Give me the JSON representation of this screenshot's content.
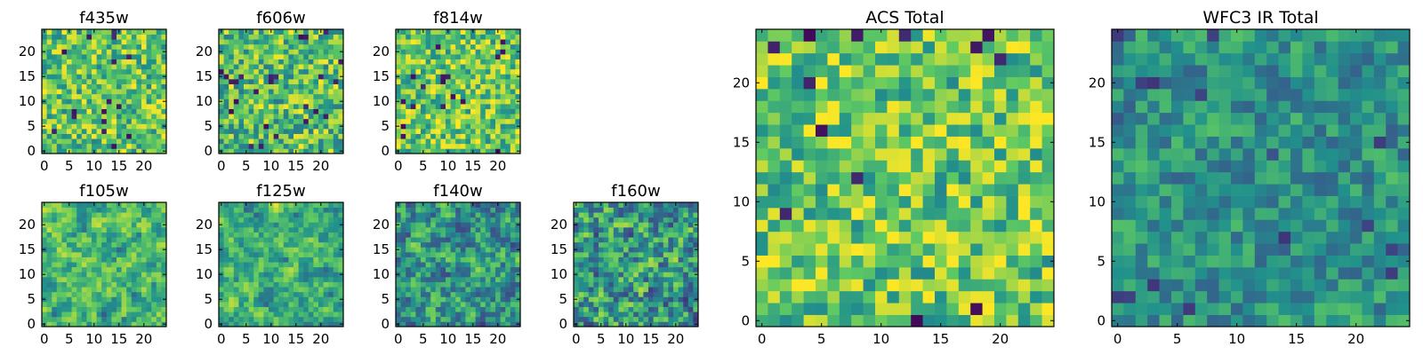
{
  "figure": {
    "background": "#ffffff"
  },
  "colormap": {
    "name": "viridis",
    "stops": [
      "#440154",
      "#3b528b",
      "#21918c",
      "#5ec962",
      "#fde725"
    ]
  },
  "chart_data": [
    {
      "type": "heatmap",
      "title": "f435w",
      "grid": 25,
      "xticks": [
        0,
        5,
        10,
        15,
        20
      ],
      "yticks": [
        0,
        5,
        10,
        15,
        20
      ],
      "seed": 11,
      "bias": 0.72,
      "spread": 0.28,
      "smooth": 0.0,
      "dark_frac": 0.03
    },
    {
      "type": "heatmap",
      "title": "f606w",
      "grid": 25,
      "xticks": [
        0,
        5,
        10,
        15,
        20
      ],
      "yticks": [
        0,
        5,
        10,
        15,
        20
      ],
      "seed": 23,
      "bias": 0.7,
      "spread": 0.3,
      "smooth": 0.0,
      "dark_frac": 0.03
    },
    {
      "type": "heatmap",
      "title": "f814w",
      "grid": 25,
      "xticks": [
        0,
        5,
        10,
        15,
        20
      ],
      "yticks": [
        0,
        5,
        10,
        15,
        20
      ],
      "seed": 37,
      "bias": 0.74,
      "spread": 0.28,
      "smooth": 0.0,
      "dark_frac": 0.03
    },
    {
      "type": "heatmap",
      "title": "f105w",
      "grid": 25,
      "xticks": [
        0,
        5,
        10,
        15,
        20
      ],
      "yticks": [
        0,
        5,
        10,
        15,
        20
      ],
      "seed": 41,
      "bias": 0.68,
      "spread": 0.4,
      "smooth": 0.6,
      "dark_frac": 0.02
    },
    {
      "type": "heatmap",
      "title": "f125w",
      "grid": 25,
      "xticks": [
        0,
        5,
        10,
        15,
        20
      ],
      "yticks": [
        0,
        5,
        10,
        15,
        20
      ],
      "seed": 53,
      "bias": 0.64,
      "spread": 0.4,
      "smooth": 0.6,
      "dark_frac": 0.02
    },
    {
      "type": "heatmap",
      "title": "f140w",
      "grid": 25,
      "xticks": [
        0,
        5,
        10,
        15,
        20
      ],
      "yticks": [
        0,
        5,
        10,
        15,
        20
      ],
      "seed": 67,
      "bias": 0.55,
      "spread": 0.42,
      "smooth": 0.5,
      "dark_frac": 0.04
    },
    {
      "type": "heatmap",
      "title": "f160w",
      "grid": 25,
      "xticks": [
        0,
        5,
        10,
        15,
        20
      ],
      "yticks": [
        0,
        5,
        10,
        15,
        20
      ],
      "seed": 79,
      "bias": 0.55,
      "spread": 0.45,
      "smooth": 0.4,
      "dark_frac": 0.05
    },
    {
      "type": "heatmap",
      "title": "ACS Total",
      "grid": 25,
      "xticks": [
        0,
        5,
        10,
        15,
        20
      ],
      "yticks": [
        0,
        5,
        10,
        15,
        20
      ],
      "seed": 97,
      "bias": 0.74,
      "spread": 0.28,
      "smooth": 0.0,
      "dark_frac": 0.025
    },
    {
      "type": "heatmap",
      "title": "WFC3 IR Total",
      "grid": 25,
      "xticks": [
        0,
        5,
        10,
        15,
        20
      ],
      "yticks": [
        0,
        5,
        10,
        15,
        20
      ],
      "seed": 113,
      "bias": 0.5,
      "spread": 0.26,
      "smooth": 0.3,
      "dark_frac": 0.02
    }
  ]
}
